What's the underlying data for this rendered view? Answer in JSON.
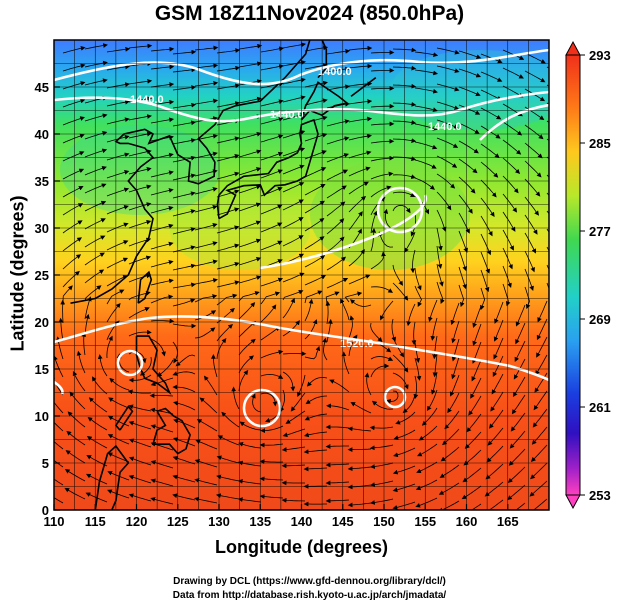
{
  "title": "GSM 18Z11Nov2024 (850.0hPa)",
  "xlabel": "Longitude (degrees)",
  "ylabel": "Latitude  (degrees)",
  "credits": [
    "Drawing by DCL (https://www.gfd-dennou.org/library/dcl/)",
    "Data from http://database.rish.kyoto-u.ac.jp/arch/jmadata/"
  ],
  "map": {
    "lon_range": [
      110,
      170
    ],
    "lat_range": [
      0,
      50
    ],
    "lon_ticks": [
      "110",
      "115",
      "120",
      "125",
      "130",
      "135",
      "140",
      "145",
      "150",
      "155",
      "160",
      "165"
    ],
    "lat_ticks": [
      "0",
      "5",
      "10",
      "15",
      "20",
      "25",
      "30",
      "35",
      "40",
      "45"
    ],
    "grid": true,
    "field": "temperature (K)",
    "overlay": [
      "streamlines",
      "geopotential height contours",
      "coastlines"
    ]
  },
  "colorbar": {
    "labels": [
      "293",
      "285",
      "277",
      "269",
      "261",
      "253"
    ],
    "min": 253,
    "max": 293
  },
  "contour_labels": [
    "1400.0",
    "1440.0",
    "1440.0",
    "1440.0",
    "1520.0"
  ]
}
